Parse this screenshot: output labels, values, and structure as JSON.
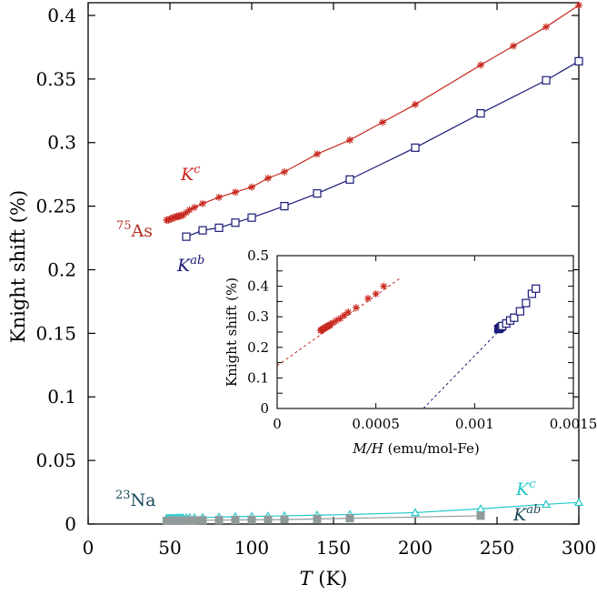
{
  "chart_data": [
    {
      "type": "line",
      "xlabel_italic": "T",
      "xlabel_unit": " (K)",
      "ylabel": "Knight shift (%)",
      "xlim": [
        0,
        300
      ],
      "ylim": [
        0,
        0.41
      ],
      "xticks": [
        0,
        50,
        100,
        150,
        200,
        250,
        300
      ],
      "xtick_labels": [
        "0",
        "50",
        "100",
        "150",
        "200",
        "250",
        "300"
      ],
      "yticks": [
        0,
        0.05,
        0.1,
        0.15,
        0.2,
        0.25,
        0.3,
        0.35,
        0.4
      ],
      "ytick_labels": [
        "0",
        "0.05",
        "0.1",
        "0.15",
        "0.2",
        "0.25",
        "0.3",
        "0.35",
        "0.4"
      ],
      "annotations": {
        "as75_sup": "75",
        "as75_label": "As",
        "na23_sup": "23",
        "na23_label": "Na",
        "kc_base": "K",
        "kc_sup": "c",
        "kab_base": "K",
        "kab_sup": "ab"
      },
      "series": [
        {
          "marker": "star",
          "color": "#c8281e",
          "x": [
            48,
            49,
            50,
            51,
            52,
            53,
            54,
            55,
            56,
            57,
            58,
            60,
            62,
            65,
            70,
            80,
            90,
            100,
            110,
            120,
            140,
            160,
            180,
            200,
            240,
            260,
            280,
            300
          ],
          "y": [
            0.239,
            0.239,
            0.24,
            0.24,
            0.241,
            0.241,
            0.242,
            0.242,
            0.242,
            0.243,
            0.243,
            0.245,
            0.247,
            0.249,
            0.252,
            0.257,
            0.261,
            0.265,
            0.272,
            0.277,
            0.291,
            0.302,
            0.316,
            0.33,
            0.361,
            0.376,
            0.391,
            0.408
          ]
        },
        {
          "marker": "square-open",
          "color": "#1a1a78",
          "x": [
            60,
            70,
            80,
            90,
            100,
            120,
            140,
            160,
            200,
            240,
            280,
            300
          ],
          "y": [
            0.226,
            0.231,
            0.233,
            0.237,
            0.241,
            0.25,
            0.26,
            0.271,
            0.296,
            0.323,
            0.349,
            0.364
          ]
        },
        {
          "marker": "triangle-open",
          "color": "#22c8c8",
          "x": [
            48,
            49,
            50,
            51,
            52,
            53,
            54,
            55,
            56,
            57,
            58,
            60,
            62,
            65,
            70,
            80,
            90,
            100,
            110,
            120,
            140,
            160,
            200,
            240,
            280,
            300
          ],
          "y": [
            0.0045,
            0.0045,
            0.0045,
            0.0046,
            0.0046,
            0.0046,
            0.0047,
            0.0047,
            0.0047,
            0.0048,
            0.0048,
            0.0049,
            0.005,
            0.005,
            0.0052,
            0.0055,
            0.0058,
            0.006,
            0.0062,
            0.0065,
            0.007,
            0.0075,
            0.009,
            0.012,
            0.0155,
            0.017
          ]
        },
        {
          "marker": "square-filled",
          "color": "#909a9a",
          "x": [
            48,
            49,
            50,
            51,
            52,
            53,
            54,
            55,
            56,
            58,
            60,
            62,
            65,
            70,
            80,
            90,
            100,
            110,
            120,
            140,
            160,
            240
          ],
          "y": [
            0.0025,
            0.0025,
            0.0025,
            0.0026,
            0.0026,
            0.0026,
            0.0026,
            0.0026,
            0.0027,
            0.0027,
            0.0028,
            0.0028,
            0.0029,
            0.003,
            0.0031,
            0.0032,
            0.0033,
            0.0034,
            0.0035,
            0.004,
            0.0045,
            0.0065
          ]
        }
      ]
    },
    {
      "type": "scatter",
      "xlabel_italic": "M/H",
      "xlabel_unit": " (emu/mol-Fe)",
      "ylabel": "Knight shift (%)",
      "xlim": [
        0,
        0.0015
      ],
      "ylim": [
        0,
        0.5
      ],
      "xticks": [
        0,
        0.0005,
        0.001,
        0.0015
      ],
      "xtick_labels": [
        "0",
        "0.0005",
        "0.001",
        "0.0015"
      ],
      "yticks": [
        0,
        0.05,
        0.1,
        0.15,
        0.2,
        0.25,
        0.3,
        0.35,
        0.4,
        0.45,
        0.5
      ],
      "ytick_labels": [
        "0",
        "",
        "0.1",
        "",
        "0.2",
        "",
        "0.3",
        "",
        "0.4",
        "",
        "0.5"
      ],
      "series": [
        {
          "marker": "star",
          "color": "#c8281e",
          "fit": {
            "x": [
              0,
              0.00062
            ],
            "y": [
              0.14,
              0.425
            ]
          },
          "x": [
            0.00022,
            0.000225,
            0.00023,
            0.000235,
            0.00024,
            0.000245,
            0.00025,
            0.000255,
            0.00026,
            0.000265,
            0.00027,
            0.00028,
            0.0003,
            0.00032,
            0.00034,
            0.00036,
            0.0004,
            0.00046,
            0.0005,
            0.00054
          ],
          "y": [
            0.255,
            0.257,
            0.259,
            0.261,
            0.263,
            0.265,
            0.267,
            0.269,
            0.27,
            0.272,
            0.275,
            0.28,
            0.288,
            0.295,
            0.305,
            0.315,
            0.33,
            0.36,
            0.375,
            0.4
          ]
        },
        {
          "marker": "square-open",
          "color": "#1a1a78",
          "fit": {
            "x": [
              0.00074,
              0.00114
            ],
            "y": [
              0,
              0.265
            ]
          },
          "x": [
            0.00112,
            0.001125,
            0.00113,
            0.001135,
            0.00114,
            0.00116,
            0.00118,
            0.0012,
            0.00123,
            0.00126,
            0.00129,
            0.00131
          ],
          "y": [
            0.26,
            0.262,
            0.265,
            0.267,
            0.27,
            0.278,
            0.288,
            0.297,
            0.318,
            0.345,
            0.375,
            0.392
          ]
        }
      ]
    }
  ]
}
